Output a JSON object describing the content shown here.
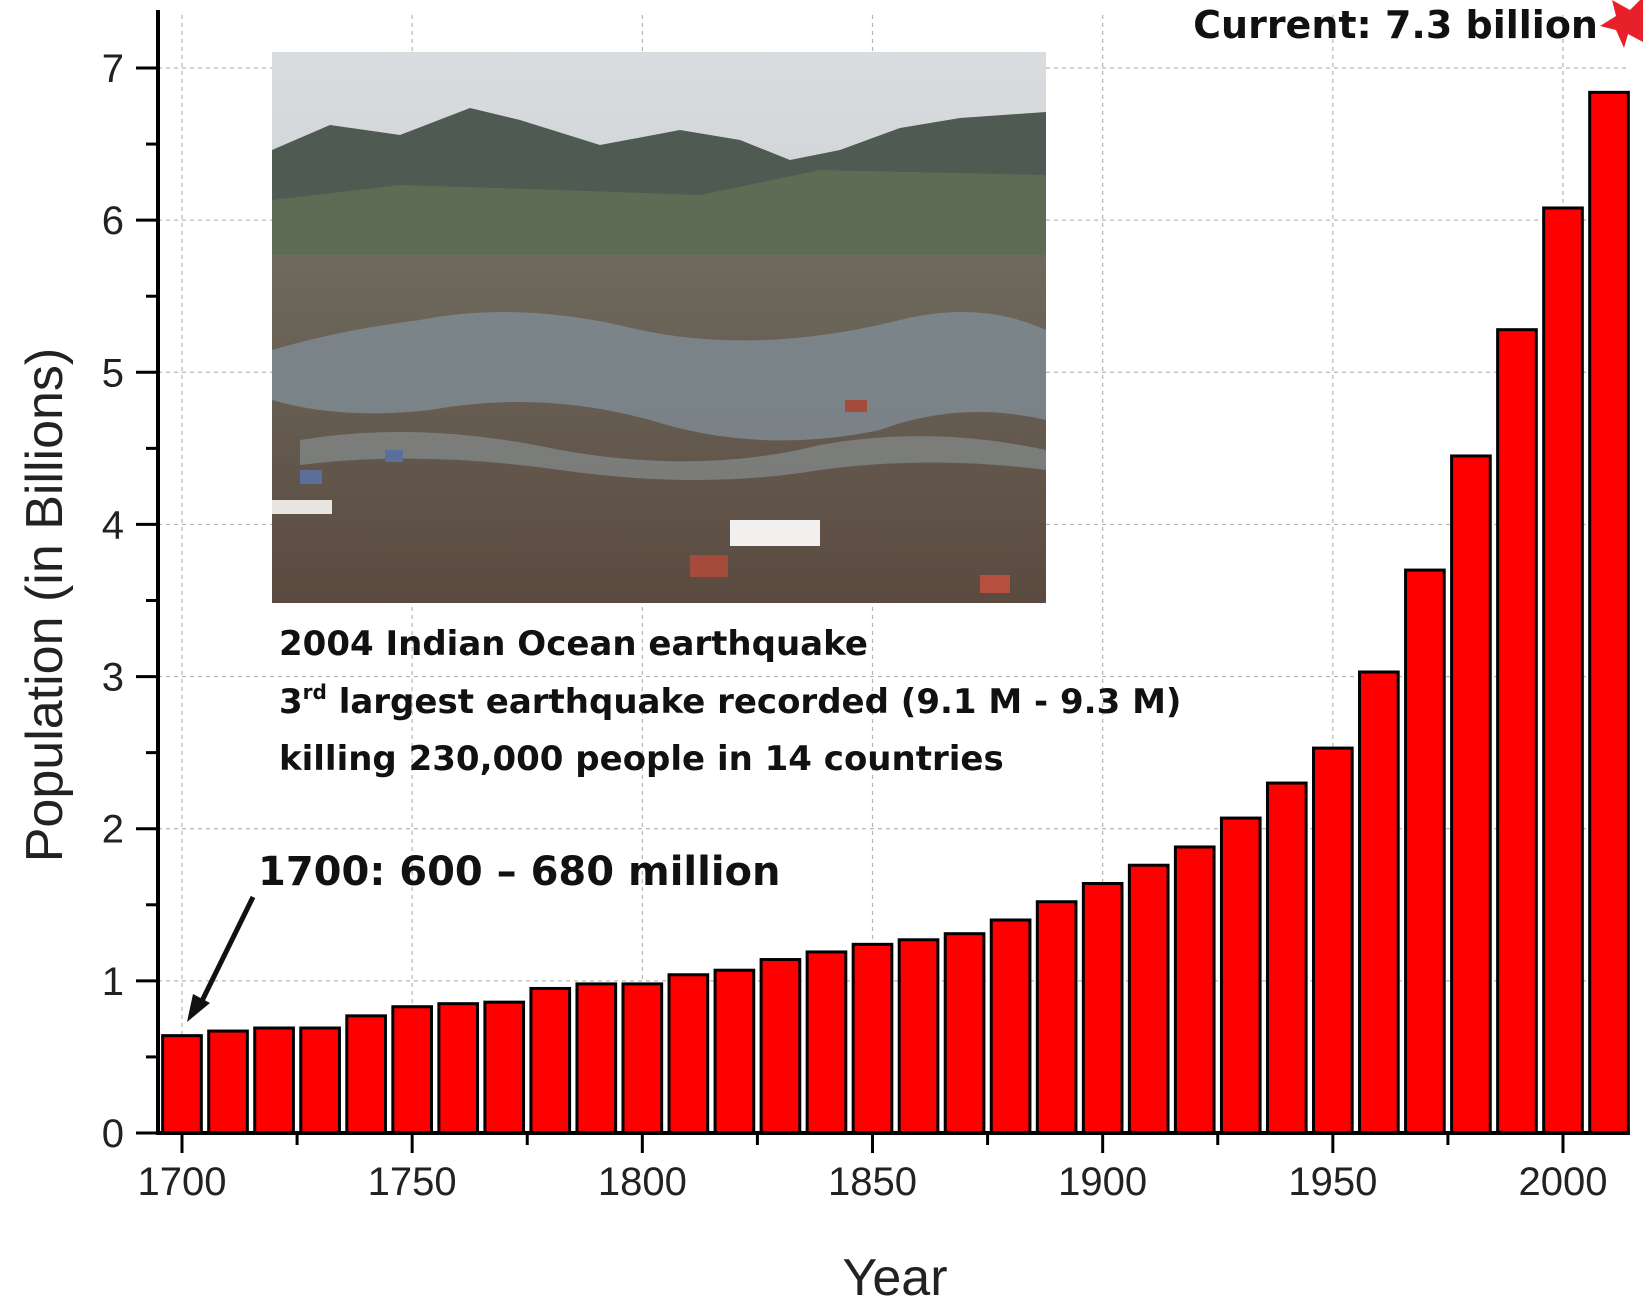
{
  "chart_data": {
    "type": "bar",
    "xlabel": "Year",
    "ylabel": "Population (in Billions)",
    "xlim": [
      1696,
      2015
    ],
    "ylim": [
      0,
      7.3
    ],
    "x_ticks": [
      1700,
      1750,
      1800,
      1850,
      1900,
      1950,
      2000
    ],
    "y_ticks": [
      0,
      1,
      2,
      3,
      4,
      5,
      6,
      7
    ],
    "grid": true,
    "bar_color": "#ff0000",
    "bar_edge_color": "#000000",
    "x": [
      1700,
      1710,
      1720,
      1730,
      1740,
      1750,
      1760,
      1770,
      1780,
      1790,
      1800,
      1810,
      1820,
      1830,
      1840,
      1850,
      1860,
      1870,
      1880,
      1890,
      1900,
      1910,
      1920,
      1930,
      1940,
      1950,
      1960,
      1970,
      1980,
      1990,
      2000,
      2010
    ],
    "values": [
      0.64,
      0.67,
      0.69,
      0.69,
      0.77,
      0.83,
      0.85,
      0.86,
      0.95,
      0.98,
      0.98,
      1.04,
      1.07,
      1.14,
      1.19,
      1.24,
      1.27,
      1.31,
      1.4,
      1.52,
      1.64,
      1.76,
      1.88,
      2.07,
      2.3,
      2.53,
      3.03,
      3.7,
      4.45,
      5.28,
      6.08,
      6.84
    ],
    "annotations": {
      "current": "Current: 7.3 billion",
      "start": "1700: 600 – 680 million",
      "quake_line1": "2004 Indian Ocean earthquake",
      "quake_line2_prefix": "3",
      "quake_line2_sup": "rd",
      "quake_line2_rest": " largest earthquake recorded (9.1 M - 9.3 M)",
      "quake_line3": "killing 230,000 people in 14 countries"
    },
    "inset_photo": "tsunami-aftermath-aerial-photo",
    "star_color": "#e8202a"
  }
}
